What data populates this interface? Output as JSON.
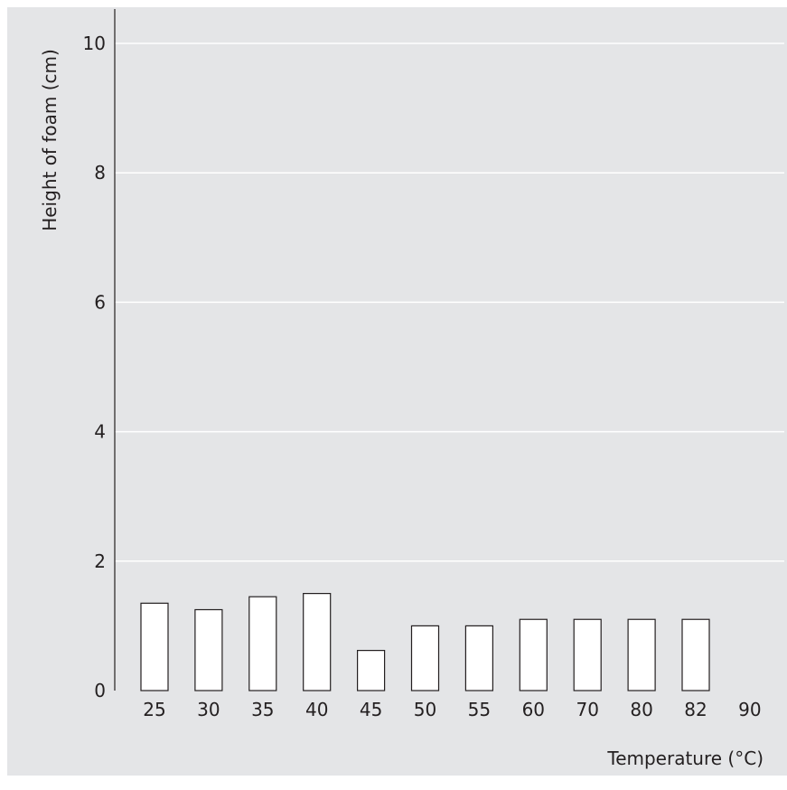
{
  "chart_data": {
    "type": "bar",
    "xlabel": "Temperature (°C)",
    "ylabel": "Height of foam (cm)",
    "categories": [
      "25",
      "30",
      "35",
      "40",
      "45",
      "50",
      "55",
      "60",
      "70",
      "80",
      "82",
      "90"
    ],
    "values": [
      1.35,
      1.25,
      1.45,
      1.5,
      0.62,
      1.0,
      1.0,
      1.1,
      1.1,
      1.1,
      1.1,
      0
    ],
    "ylim": [
      0,
      10
    ],
    "yticks": [
      0,
      2,
      4,
      6,
      8,
      10
    ],
    "grid": true,
    "colors": {
      "background": "#e4e5e7",
      "bar_fill": "#ffffff",
      "bar_stroke": "#231f20",
      "grid": "#ffffff",
      "axis": "#231f20"
    }
  }
}
